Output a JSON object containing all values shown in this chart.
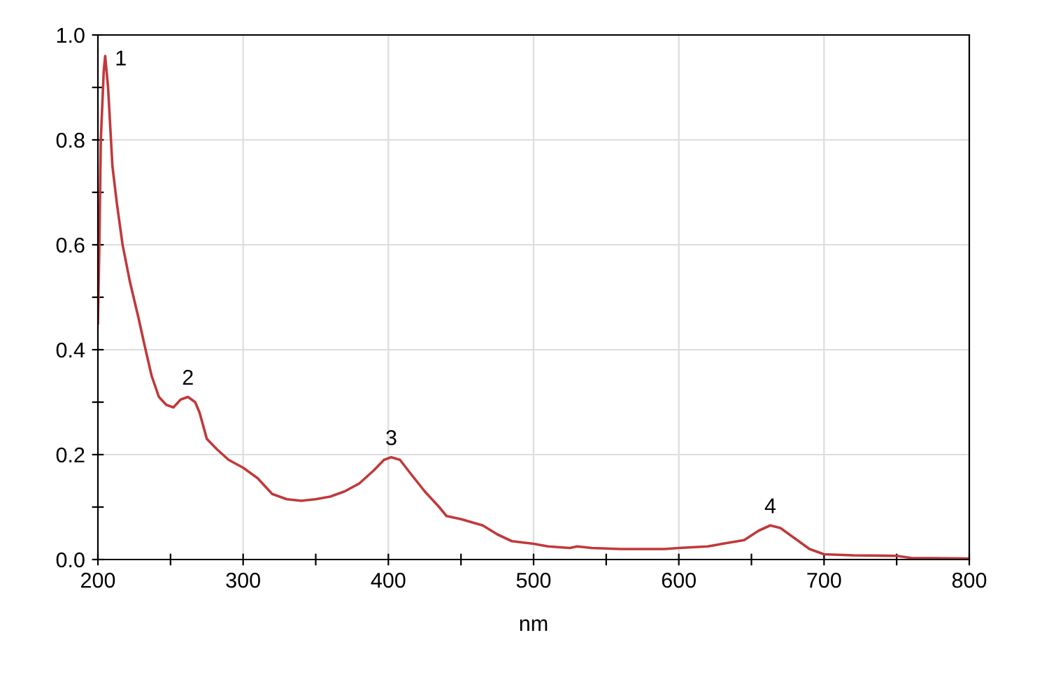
{
  "chart_data": {
    "type": "line",
    "xlabel": "nm",
    "x": [
      200,
      201,
      202,
      204,
      205,
      207,
      210,
      213,
      217,
      222,
      228,
      232,
      237,
      242,
      247,
      252,
      257,
      262,
      267,
      270,
      275,
      282,
      290,
      300,
      310,
      320,
      330,
      340,
      350,
      360,
      370,
      380,
      390,
      397,
      402,
      408,
      415,
      425,
      435,
      440,
      450,
      465,
      475,
      485,
      500,
      510,
      525,
      530,
      540,
      560,
      590,
      600,
      620,
      630,
      645,
      655,
      663,
      670,
      680,
      690,
      700,
      720,
      750,
      760,
      800
    ],
    "series": [
      {
        "color": "#c0393b",
        "values": [
          0.45,
          0.6,
          0.8,
          0.93,
          0.96,
          0.9,
          0.75,
          0.68,
          0.6,
          0.53,
          0.46,
          0.41,
          0.35,
          0.31,
          0.295,
          0.29,
          0.305,
          0.31,
          0.3,
          0.28,
          0.23,
          0.21,
          0.19,
          0.175,
          0.155,
          0.125,
          0.115,
          0.112,
          0.115,
          0.12,
          0.13,
          0.145,
          0.17,
          0.19,
          0.195,
          0.19,
          0.165,
          0.13,
          0.1,
          0.083,
          0.077,
          0.065,
          0.048,
          0.035,
          0.03,
          0.025,
          0.022,
          0.025,
          0.022,
          0.02,
          0.02,
          0.022,
          0.025,
          0.03,
          0.037,
          0.055,
          0.065,
          0.06,
          0.04,
          0.02,
          0.01,
          0.008,
          0.007,
          0.003,
          0.002
        ]
      }
    ],
    "xlim": [
      200,
      800
    ],
    "ylim": [
      0,
      1
    ],
    "xticks": [
      200,
      {
        "value": 250,
        "label": null
      },
      300,
      {
        "value": 350,
        "label": null
      },
      400,
      {
        "value": 450,
        "label": null
      },
      500,
      {
        "value": 550,
        "label": null
      },
      600,
      {
        "value": 650,
        "label": null
      },
      700,
      {
        "value": 750,
        "label": null
      },
      800
    ],
    "yticks": [
      {
        "value": 0,
        "label": "0.0"
      },
      {
        "value": 0.1,
        "label": null
      },
      0.2,
      {
        "value": 0.3,
        "label": null
      },
      0.4,
      {
        "value": 0.5,
        "label": null
      },
      0.6,
      {
        "value": 0.7,
        "label": null
      },
      0.8,
      {
        "value": 0.9,
        "label": null
      },
      {
        "value": 1,
        "label": "1.0"
      }
    ],
    "grid": true,
    "annotations": [
      {
        "text": "1",
        "x": 205,
        "y": 0.96
      },
      {
        "text": "2",
        "x": 262,
        "y": 0.31
      },
      {
        "text": "3",
        "x": 402,
        "y": 0.195
      },
      {
        "text": "4",
        "x": 663,
        "y": 0.065
      }
    ]
  }
}
